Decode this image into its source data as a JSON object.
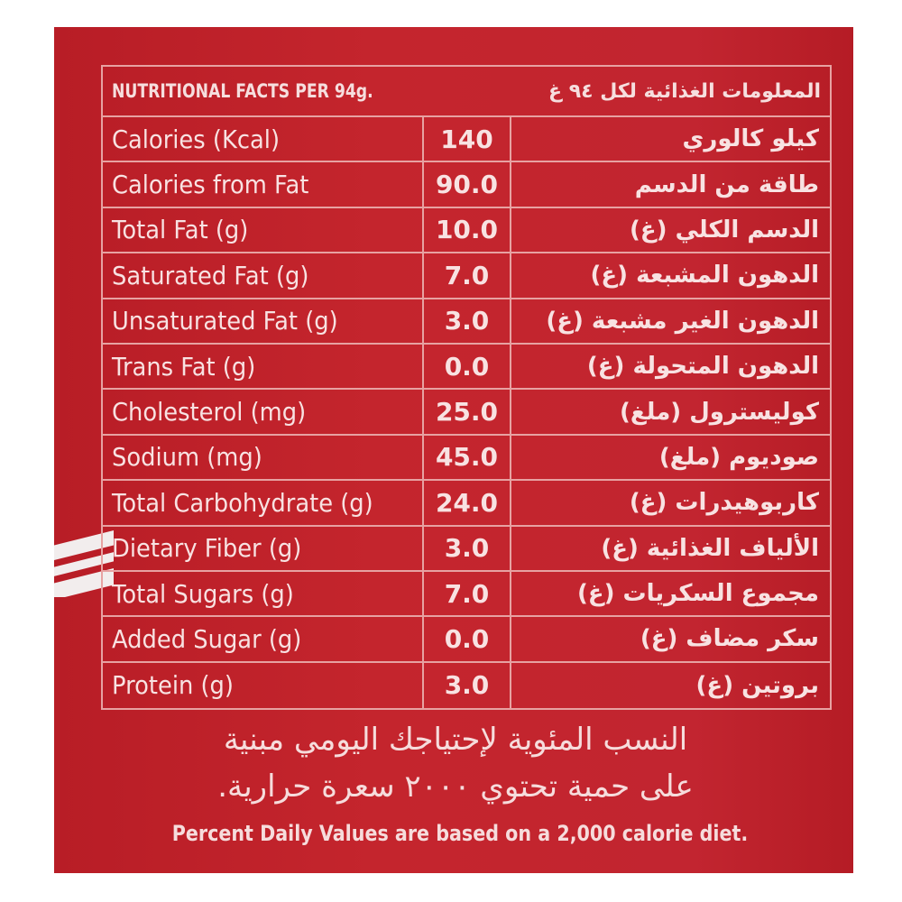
{
  "colors": {
    "label_background": "#c0232b",
    "text": "#f8e2e2",
    "rules": "#e7a2a2"
  },
  "header": {
    "english": "NUTRITIONAL FACTS PER 94g.",
    "arabic": "المعلومات الغذائية لكل ٩٤ غ"
  },
  "rows": [
    {
      "en": "Calories (Kcal)",
      "value": "140",
      "ar": "كيلو كالوري"
    },
    {
      "en": "Calories from Fat",
      "value": "90.0",
      "ar": "طاقة من الدسم"
    },
    {
      "en": "Total Fat (g)",
      "value": "10.0",
      "ar": "الدسم الكلي (غ)"
    },
    {
      "en": "Saturated Fat (g)",
      "value": "7.0",
      "ar": "الدهون المشبعة (غ)"
    },
    {
      "en": "Unsaturated Fat (g)",
      "value": "3.0",
      "ar": "الدهون الغير مشبعة (غ)"
    },
    {
      "en": "Trans Fat (g)",
      "value": "0.0",
      "ar": "الدهون المتحولة (غ)"
    },
    {
      "en": "Cholesterol (mg)",
      "value": "25.0",
      "ar": "كوليسترول (ملغ)"
    },
    {
      "en": "Sodium (mg)",
      "value": "45.0",
      "ar": "صوديوم (ملغ)"
    },
    {
      "en": "Total Carbohydrate (g)",
      "value": "24.0",
      "ar": "كاربوهيدرات (غ)"
    },
    {
      "en": "Dietary Fiber (g)",
      "value": "3.0",
      "ar": "الألياف الغذائية (غ)"
    },
    {
      "en": "Total Sugars (g)",
      "value": "7.0",
      "ar": "مجموع السكريات (غ)"
    },
    {
      "en": "Added Sugar (g)",
      "value": "0.0",
      "ar": "سكر مضاف (غ)"
    },
    {
      "en": "Protein (g)",
      "value": "3.0",
      "ar": "بروتين (غ)"
    }
  ],
  "footer": {
    "arabic_line1": "النسب المئوية لإحتياجك اليومي مبنية",
    "arabic_line2": "على حمية تحتوي ٢٠٠٠ سعرة حرارية.",
    "english": "Percent Daily Values are based on a 2,000 calorie diet."
  }
}
